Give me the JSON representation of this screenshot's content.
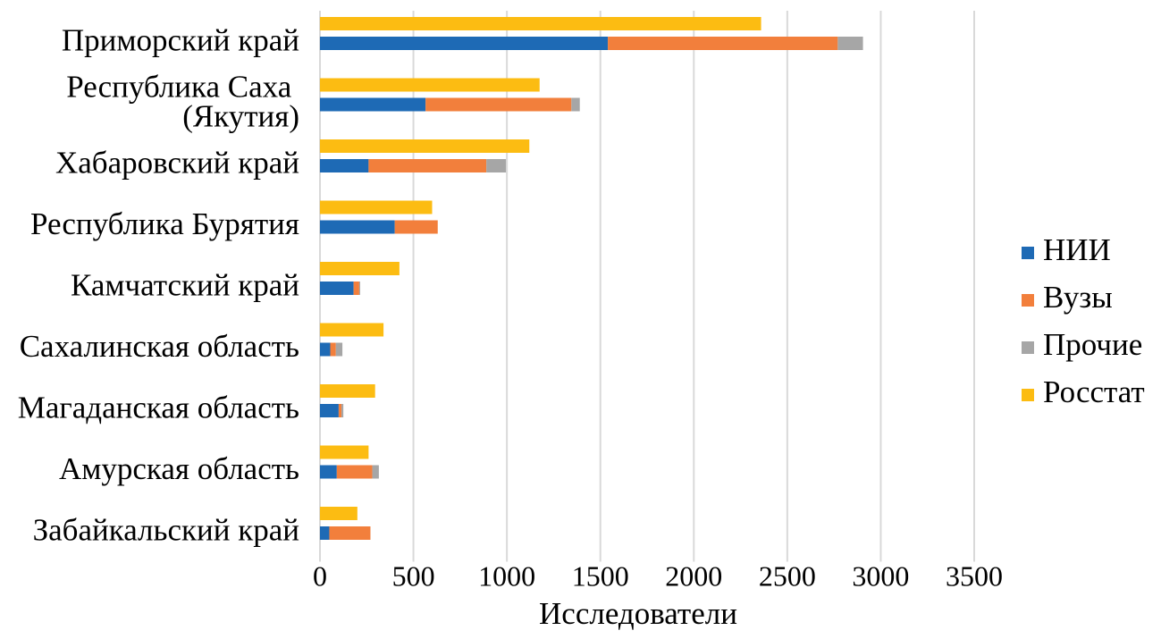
{
  "chart_data": {
    "type": "bar",
    "orientation": "horizontal",
    "categories": [
      "Приморский край",
      "Республика Саха (Якутия)",
      "Хабаровский край",
      "Республика Бурятия",
      "Камчатский край",
      "Сахалинская область",
      "Магаданская область",
      "Амурская область",
      "Забайкальский край"
    ],
    "series": [
      {
        "name": "НИИ",
        "stacked": true,
        "color": "#1E6AB5",
        "values": [
          1540,
          565,
          260,
          400,
          180,
          55,
          100,
          90,
          50
        ]
      },
      {
        "name": "Вузы",
        "stacked": true,
        "color": "#F27F3C",
        "values": [
          1230,
          780,
          630,
          230,
          30,
          30,
          15,
          190,
          220
        ]
      },
      {
        "name": "Прочие",
        "stacked": true,
        "color": "#A6A6A6",
        "values": [
          135,
          45,
          105,
          0,
          5,
          35,
          10,
          35,
          0
        ]
      },
      {
        "name": "Росстат",
        "stacked": false,
        "color": "#FCBC12",
        "values": [
          2360,
          1175,
          1120,
          600,
          425,
          340,
          295,
          260,
          200
        ]
      }
    ],
    "xlabel": "Исследователи",
    "xlim": [
      0,
      3500
    ],
    "xticks": [
      0,
      500,
      1000,
      1500,
      2000,
      2500,
      3000,
      3500
    ],
    "grid": true,
    "legend": "right"
  }
}
